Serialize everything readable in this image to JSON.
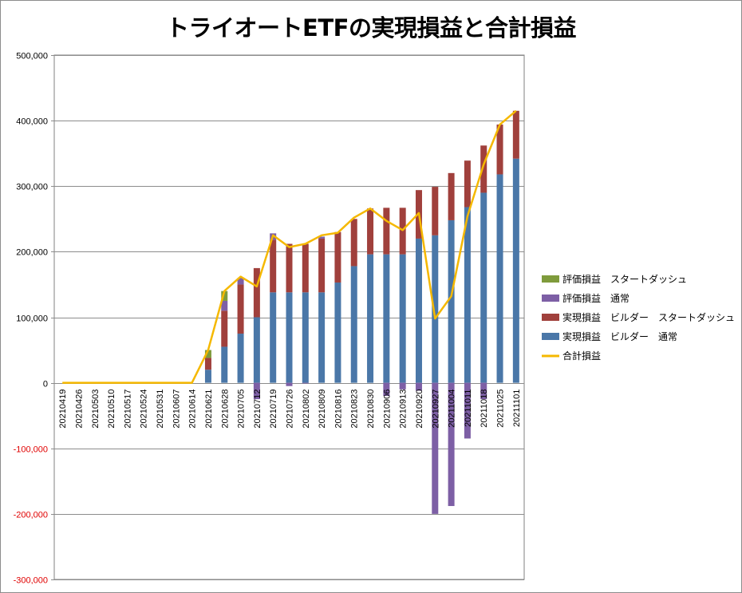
{
  "chart_data": {
    "type": "bar",
    "stacked": true,
    "title": "トライオートETFの実現損益と合計損益",
    "categories": [
      "20210419",
      "20210426",
      "20210503",
      "20210510",
      "20210517",
      "20210524",
      "20210531",
      "20210607",
      "20210614",
      "20210621",
      "20210628",
      "20210705",
      "20210712",
      "20210719",
      "20210726",
      "20210802",
      "20210809",
      "20210816",
      "20210823",
      "20210830",
      "20210906",
      "20210913",
      "20210920",
      "20210927",
      "20211004",
      "20211011",
      "20211018",
      "20211025",
      "20211101"
    ],
    "ylim": [
      -300000,
      500000
    ],
    "yticks": [
      500000,
      400000,
      300000,
      200000,
      100000,
      0,
      -100000,
      -200000,
      -300000
    ],
    "ytick_labels": [
      "500,000",
      "400,000",
      "300,000",
      "200,000",
      "100,000",
      "0",
      "-100,000",
      "-200,000",
      "-300,000"
    ],
    "negative_tick_color": "#e00000",
    "grid": true,
    "legend_position": "right",
    "series": [
      {
        "name": "実現損益 ビルダー 通常",
        "kind": "bar",
        "color": "#4a77a8",
        "values": [
          0,
          0,
          0,
          0,
          0,
          0,
          0,
          0,
          0,
          20000,
          55000,
          75000,
          100000,
          138000,
          138000,
          138000,
          138000,
          153000,
          178000,
          196000,
          196000,
          196000,
          220000,
          225000,
          248000,
          268000,
          290000,
          318000,
          342000
        ]
      },
      {
        "name": "実現損益 ビルダー スタートダッシュ",
        "kind": "bar",
        "color": "#a0403c",
        "values": [
          0,
          0,
          0,
          0,
          0,
          0,
          0,
          0,
          0,
          18000,
          55000,
          75000,
          75000,
          80000,
          74000,
          74000,
          82000,
          77000,
          72000,
          70000,
          71000,
          71000,
          74000,
          74000,
          72000,
          71000,
          72000,
          76000,
          73000
        ]
      },
      {
        "name": "評価損益 通常",
        "kind": "bar",
        "color": "#7d5fa5",
        "values": [
          0,
          0,
          0,
          0,
          0,
          0,
          0,
          0,
          0,
          0,
          15000,
          10000,
          -25000,
          10000,
          -5000,
          -1000,
          3000,
          0,
          0,
          0,
          -20000,
          -10000,
          -12000,
          -200000,
          -188000,
          -85000,
          -25000,
          0,
          0
        ]
      },
      {
        "name": "評価損益 スタートダッシュ",
        "kind": "bar",
        "color": "#7f9b3c",
        "values": [
          0,
          0,
          0,
          0,
          0,
          0,
          0,
          0,
          0,
          12000,
          15000,
          0,
          0,
          0,
          0,
          0,
          0,
          0,
          0,
          0,
          0,
          0,
          0,
          0,
          0,
          0,
          0,
          0,
          0
        ]
      },
      {
        "name": "合計損益",
        "kind": "line",
        "color": "#f5b800",
        "values": [
          0,
          0,
          0,
          0,
          0,
          0,
          0,
          0,
          0,
          50000,
          140000,
          162000,
          147000,
          225000,
          207000,
          212000,
          225000,
          229000,
          252000,
          266000,
          247000,
          233000,
          259000,
          98000,
          132000,
          254000,
          333000,
          394000,
          415000
        ]
      }
    ],
    "legend_order": [
      "評価損益 スタートダッシュ",
      "評価損益 通常",
      "実現損益 ビルダー スタートダッシュ",
      "実現損益 ビルダー 通常",
      "合計損益"
    ],
    "legend_labels": [
      "評価損益　スタートダッシュ",
      "評価損益　通常",
      "実現損益　ビルダー　スタートダッシュ",
      "実現損益　ビルダー　通常",
      "合計損益"
    ]
  }
}
